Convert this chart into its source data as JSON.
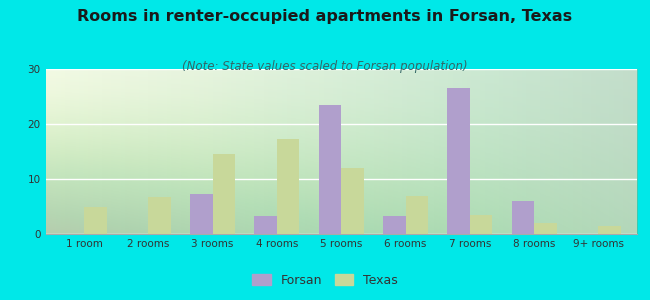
{
  "title": "Rooms in renter-occupied apartments in Forsan, Texas",
  "subtitle": "(Note: State values scaled to Forsan population)",
  "categories": [
    "1 room",
    "2 rooms",
    "3 rooms",
    "4 rooms",
    "5 rooms",
    "6 rooms",
    "7 rooms",
    "8 rooms",
    "9+ rooms"
  ],
  "forsan_values": [
    0,
    0,
    7.2,
    3.3,
    23.5,
    3.3,
    26.5,
    6.0,
    0
  ],
  "texas_values": [
    5.0,
    6.7,
    14.5,
    17.2,
    12.0,
    7.0,
    3.4,
    2.0,
    1.5
  ],
  "forsan_color": "#b09fcc",
  "texas_color": "#c8d89a",
  "background_color": "#00e8e8",
  "ylim": [
    0,
    30
  ],
  "yticks": [
    0,
    10,
    20,
    30
  ],
  "bar_width": 0.35,
  "figsize": [
    6.5,
    3.0
  ],
  "dpi": 100,
  "title_fontsize": 11.5,
  "subtitle_fontsize": 8.5,
  "tick_fontsize": 7.5,
  "legend_fontsize": 9
}
